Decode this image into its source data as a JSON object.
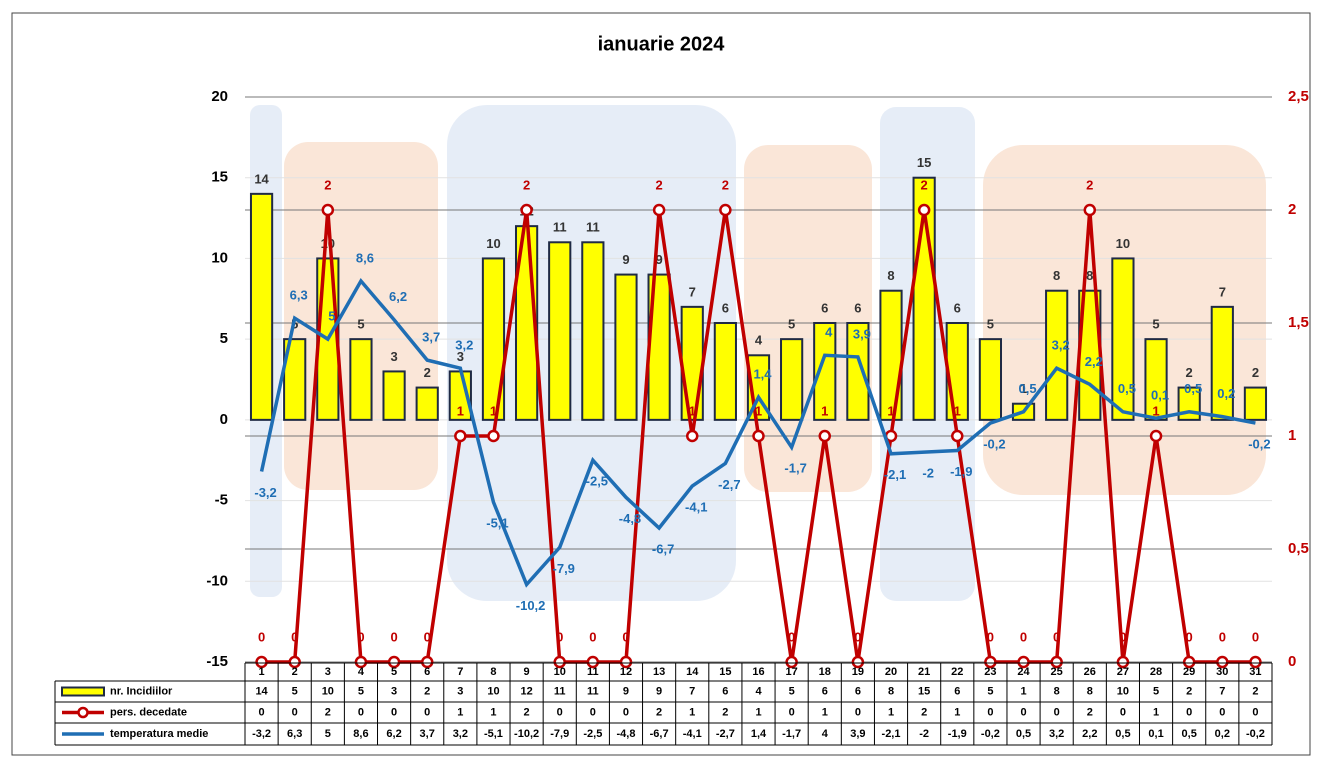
{
  "chart_data": {
    "type": "combo",
    "title": "ianuarie 2024",
    "categories": [
      "1",
      "2",
      "3",
      "4",
      "5",
      "6",
      "7",
      "8",
      "9",
      "10",
      "11",
      "12",
      "13",
      "14",
      "15",
      "16",
      "17",
      "18",
      "19",
      "20",
      "21",
      "22",
      "23",
      "24",
      "25",
      "26",
      "27",
      "28",
      "29",
      "30",
      "31"
    ],
    "series": [
      {
        "name": "nr. Incidiilor",
        "type": "bar",
        "color": "#ffff00",
        "values": [
          14,
          5,
          10,
          5,
          3,
          2,
          3,
          10,
          12,
          11,
          11,
          9,
          9,
          7,
          6,
          4,
          5,
          6,
          6,
          8,
          15,
          6,
          5,
          1,
          8,
          8,
          10,
          5,
          2,
          7,
          2
        ]
      },
      {
        "name": "pers. decedate",
        "type": "line",
        "axis": "y2",
        "color": "#c00000",
        "values": [
          0,
          0,
          2,
          0,
          0,
          0,
          1,
          1,
          2,
          0,
          0,
          0,
          2,
          1,
          2,
          1,
          0,
          1,
          0,
          1,
          2,
          1,
          0,
          0,
          0,
          2,
          0,
          1,
          0,
          0,
          0
        ]
      },
      {
        "name": "temperatura medie",
        "type": "line",
        "color": "#1f6eb4",
        "values": [
          -3.2,
          6.3,
          5,
          8.6,
          6.2,
          3.7,
          3.2,
          -5.1,
          -10.2,
          -7.9,
          -2.5,
          -4.8,
          -6.7,
          -4.1,
          -2.7,
          1.4,
          -1.7,
          4,
          3.9,
          -2.1,
          -2,
          -1.9,
          -0.2,
          0.5,
          3.2,
          2.2,
          0.5,
          0.1,
          0.5,
          0.2,
          -0.2
        ],
        "value_labels": [
          "-3,2",
          "6,3",
          "5",
          "8,6",
          "6,2",
          "3,7",
          "3,2",
          "-5,1",
          "-10,2",
          "-7,9",
          "-2,5",
          "-4,8",
          "-6,7",
          "-4,1",
          "-2,7",
          "1,4",
          "-1,7",
          "4",
          "3,9",
          "-2,1",
          "-2",
          "-1,9",
          "-0,2",
          "0,5",
          "3,2",
          "2,2",
          "0,5",
          "0,1",
          "0,5",
          "0,2",
          "-0,2"
        ]
      }
    ],
    "ylim": [
      -15,
      20
    ],
    "yticks": [
      -15,
      -10,
      -5,
      0,
      5,
      10,
      15,
      20
    ],
    "y2lim": [
      0,
      2.5
    ],
    "y2ticks": [
      0,
      {
        "value": 0.5,
        "label": "0,5"
      },
      1,
      {
        "value": 1.5,
        "label": "1,5"
      },
      2,
      {
        "value": 2.5,
        "label": "2,5"
      }
    ],
    "grid": true
  }
}
